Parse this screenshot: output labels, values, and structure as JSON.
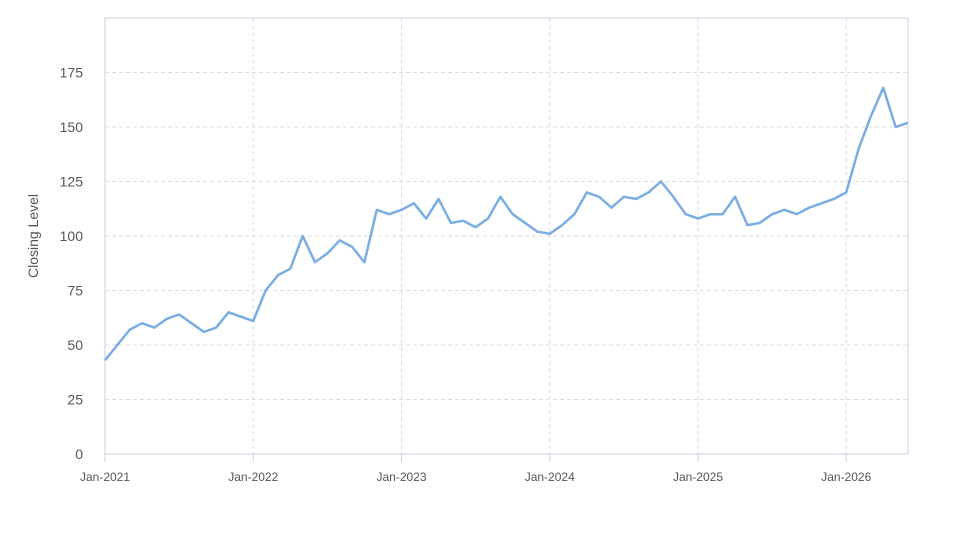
{
  "chart_data": {
    "type": "line",
    "y_label": "Closing Level",
    "x": [
      "2021-01",
      "2021-02",
      "2021-03",
      "2021-04",
      "2021-05",
      "2021-06",
      "2021-07",
      "2021-08",
      "2021-09",
      "2021-10",
      "2021-11",
      "2021-12",
      "2022-01",
      "2022-02",
      "2022-03",
      "2022-04",
      "2022-05",
      "2022-06",
      "2022-07",
      "2022-08",
      "2022-09",
      "2022-10",
      "2022-11",
      "2022-12",
      "2023-01",
      "2023-02",
      "2023-03",
      "2023-04",
      "2023-05",
      "2023-06",
      "2023-07",
      "2023-08",
      "2023-09",
      "2023-10",
      "2023-11",
      "2023-12",
      "2024-01",
      "2024-02",
      "2024-03",
      "2024-04",
      "2024-05",
      "2024-06",
      "2024-07",
      "2024-08",
      "2024-09",
      "2024-10",
      "2024-11",
      "2024-12",
      "2025-01",
      "2025-02",
      "2025-03",
      "2025-04",
      "2025-05",
      "2025-06",
      "2025-07",
      "2025-08",
      "2025-09",
      "2025-10",
      "2025-11",
      "2025-12",
      "2026-01",
      "2026-02",
      "2026-03",
      "2026-04",
      "2026-05",
      "2026-06"
    ],
    "series": [
      {
        "color": "#7aaee3",
        "values": [
          43,
          50,
          57,
          60,
          58,
          62,
          64,
          60,
          56,
          58,
          65,
          63,
          61,
          75,
          82,
          85,
          100,
          88,
          92,
          98,
          95,
          88,
          112,
          110,
          112,
          115,
          108,
          117,
          106,
          107,
          104,
          108,
          118,
          110,
          106,
          102,
          101,
          105,
          110,
          120,
          118,
          113,
          118,
          117,
          120,
          125,
          118,
          110,
          108,
          110,
          110,
          118,
          105,
          106,
          110,
          112,
          110,
          113,
          115,
          117,
          120,
          140,
          155,
          168,
          150,
          152
        ]
      }
    ],
    "xlim": [
      "2021-01",
      "2026-06"
    ],
    "xticks": [
      {
        "value": "2021-01",
        "label": "Jan-2021"
      },
      {
        "value": "2022-01",
        "label": "Jan-2022"
      },
      {
        "value": "2023-01",
        "label": "Jan-2023"
      },
      {
        "value": "2024-01",
        "label": "Jan-2024"
      },
      {
        "value": "2025-01",
        "label": "Jan-2025"
      },
      {
        "value": "2026-01",
        "label": "Jan-2026"
      }
    ],
    "ylim": [
      0,
      200
    ],
    "yticks": [
      0,
      25,
      50,
      75,
      100,
      125,
      150,
      175
    ],
    "grid": true
  }
}
